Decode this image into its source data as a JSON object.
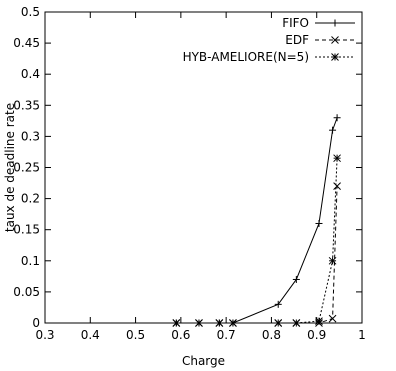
{
  "chart_data": {
    "type": "line",
    "xlabel": "Charge",
    "ylabel": "taux de deadline rate",
    "xlim": [
      0.3,
      1.0
    ],
    "ylim": [
      0,
      0.5
    ],
    "xticks": [
      "0.3",
      "0.4",
      "0.5",
      "0.6",
      "0.7",
      "0.8",
      "0.9",
      "1"
    ],
    "yticks": [
      "0",
      "0.05",
      "0.1",
      "0.15",
      "0.2",
      "0.25",
      "0.3",
      "0.35",
      "0.4",
      "0.45",
      "0.5"
    ],
    "xtick_values": [
      0.3,
      0.4,
      0.5,
      0.6,
      0.7,
      0.8,
      0.9,
      1.0
    ],
    "ytick_values": [
      0,
      0.05,
      0.1,
      0.15,
      0.2,
      0.25,
      0.3,
      0.35,
      0.4,
      0.45,
      0.5
    ],
    "grid": false,
    "legend_position": "top-right",
    "series": [
      {
        "name": "FIFO",
        "marker": "plus",
        "dash": "solid",
        "x": [
          0.59,
          0.64,
          0.685,
          0.715,
          0.815,
          0.855,
          0.905,
          0.935,
          0.945
        ],
        "y": [
          0,
          0,
          0,
          0,
          0.03,
          0.07,
          0.16,
          0.31,
          0.33
        ]
      },
      {
        "name": "EDF",
        "marker": "cross",
        "dash": "dashed",
        "x": [
          0.59,
          0.64,
          0.685,
          0.715,
          0.815,
          0.855,
          0.905,
          0.935,
          0.945
        ],
        "y": [
          0,
          0,
          0,
          0,
          0,
          0,
          0,
          0.007,
          0.22
        ]
      },
      {
        "name": "HYB-AMELIORE(N=5)",
        "marker": "star",
        "dash": "dotted",
        "x": [
          0.59,
          0.64,
          0.685,
          0.715,
          0.815,
          0.855,
          0.905,
          0.935,
          0.945
        ],
        "y": [
          0,
          0,
          0,
          0,
          0,
          0,
          0.003,
          0.1,
          0.265
        ]
      }
    ]
  }
}
